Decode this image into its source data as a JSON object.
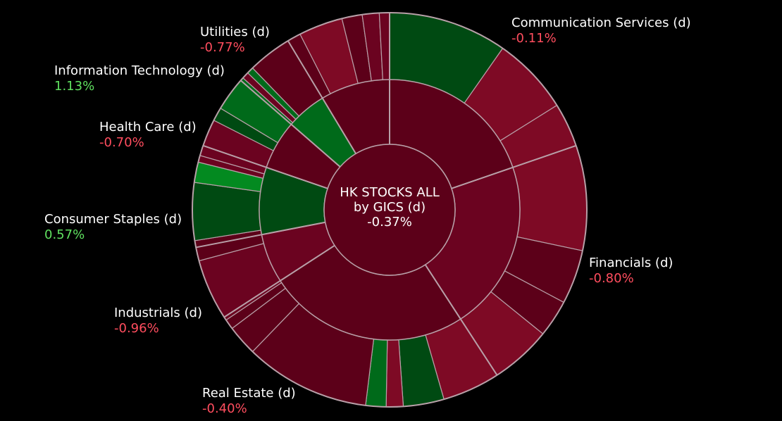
{
  "chart_data": {
    "type": "sunburst",
    "center": {
      "line1": "HK STOCKS ALL",
      "line2": "by GICS (d)",
      "value": "-0.37%"
    },
    "colors": {
      "positive": "#5fe05f",
      "negative": "#ff4d5e",
      "label": "#ffffff"
    },
    "sectors": [
      {
        "name": "Communication Services (d)",
        "change": "-0.11%",
        "sign": "negative"
      },
      {
        "name": "Financials (d)",
        "change": "-0.80%",
        "sign": "negative"
      },
      {
        "name": "Real Estate (d)",
        "change": "-0.40%",
        "sign": "negative"
      },
      {
        "name": "Industrials (d)",
        "change": "-0.96%",
        "sign": "negative"
      },
      {
        "name": "Consumer Staples (d)",
        "change": "0.57%",
        "sign": "positive"
      },
      {
        "name": "Health Care (d)",
        "change": "-0.70%",
        "sign": "negative"
      },
      {
        "name": "Information Technology (d)",
        "change": "1.13%",
        "sign": "positive"
      },
      {
        "name": "Utilities (d)",
        "change": "-0.77%",
        "sign": "negative"
      }
    ]
  }
}
